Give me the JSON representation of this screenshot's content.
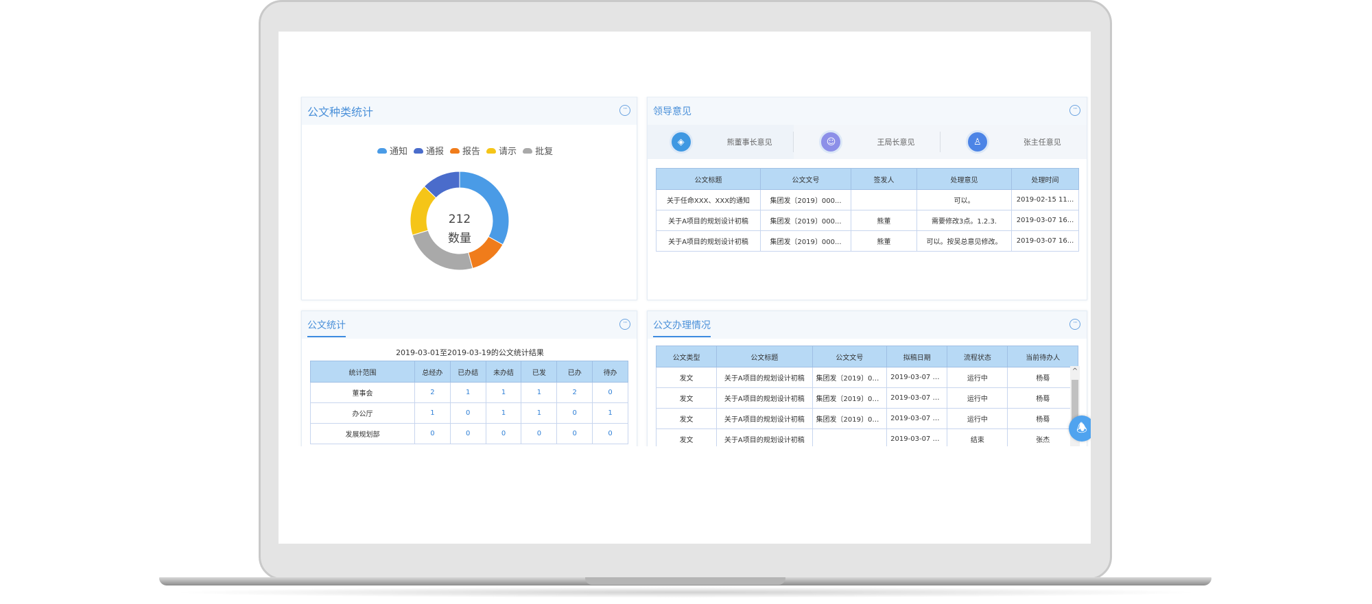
{
  "panels": {
    "doc_types": {
      "title": "公文种类统计",
      "more": "···",
      "center_value": "212",
      "center_label": "数量"
    },
    "leader_opinions": {
      "title": "领导意见",
      "more": "···",
      "tabs": [
        {
          "label": "熊董事长意见",
          "icon": "layers-icon"
        },
        {
          "label": "王局长意见",
          "icon": "user-group-icon"
        },
        {
          "label": "张主任意见",
          "icon": "stamp-icon"
        }
      ],
      "columns": [
        "公文标题",
        "公文文号",
        "签发人",
        "处理意见",
        "处理时间"
      ],
      "rows": [
        [
          "关于任命XXX、XXX的通知",
          "集团发〔2019〕000...",
          "",
          "可以。",
          "2019-02-15 11..."
        ],
        [
          "关于A项目的规划设计初稿",
          "集团发〔2019〕000...",
          "熊董",
          "需要修改3点。1.2.3.",
          "2019-03-07 16..."
        ],
        [
          "关于A项目的规划设计初稿",
          "集团发〔2019〕000...",
          "熊董",
          "可以。按吴总意见修改。",
          "2019-03-07 16..."
        ]
      ]
    },
    "doc_stats": {
      "title": "公文统计",
      "more": "···",
      "range_text": "2019-03-01至2019-03-19的公文统计结果",
      "columns": [
        "统计范围",
        "总经办",
        "已办结",
        "未办结",
        "已发",
        "已办",
        "待办"
      ],
      "rows": [
        [
          "董事会",
          "2",
          "1",
          "1",
          "1",
          "2",
          "0"
        ],
        [
          "办公厅",
          "1",
          "0",
          "1",
          "1",
          "0",
          "1"
        ],
        [
          "发展规划部",
          "0",
          "0",
          "0",
          "0",
          "0",
          "0"
        ]
      ]
    },
    "doc_processing": {
      "title": "公文办理情况",
      "more": "···",
      "columns": [
        "公文类型",
        "公文标题",
        "公文文号",
        "拟稿日期",
        "流程状态",
        "当前待办人"
      ],
      "rows": [
        [
          "发文",
          "关于A项目的规划设计初稿",
          "集团发〔2019〕00...",
          "2019-03-07 1...",
          "运行中",
          "杨蓦"
        ],
        [
          "发文",
          "关于A项目的规划设计初稿",
          "集团发〔2019〕00...",
          "2019-03-07 1...",
          "运行中",
          "杨蓦"
        ],
        [
          "发文",
          "关于A项目的规划设计初稿",
          "集团发〔2019〕00...",
          "2019-03-07 1...",
          "运行中",
          "杨蓦"
        ],
        [
          "发文",
          "关于A项目的规划设计初稿",
          "",
          "2019-03-07 1...",
          "结束",
          "张杰"
        ]
      ],
      "scroll_up": "^"
    }
  },
  "bell_icon": "bell-icon",
  "chart_data": {
    "type": "pie",
    "variant": "donut",
    "legend_position": "top",
    "series": [
      {
        "name": "通知",
        "value": 70,
        "color": "#4a9be6"
      },
      {
        "name": "报告",
        "value": 27,
        "color": "#f07c1b"
      },
      {
        "name": "批复",
        "value": 52,
        "color": "#a9a9a9"
      },
      {
        "name": "请示",
        "value": 36,
        "color": "#f5c518"
      },
      {
        "name": "通报",
        "value": 27,
        "color": "#4a6ccb"
      }
    ],
    "legend_order": [
      "通知",
      "通报",
      "报告",
      "请示",
      "批复"
    ],
    "total": 212
  }
}
